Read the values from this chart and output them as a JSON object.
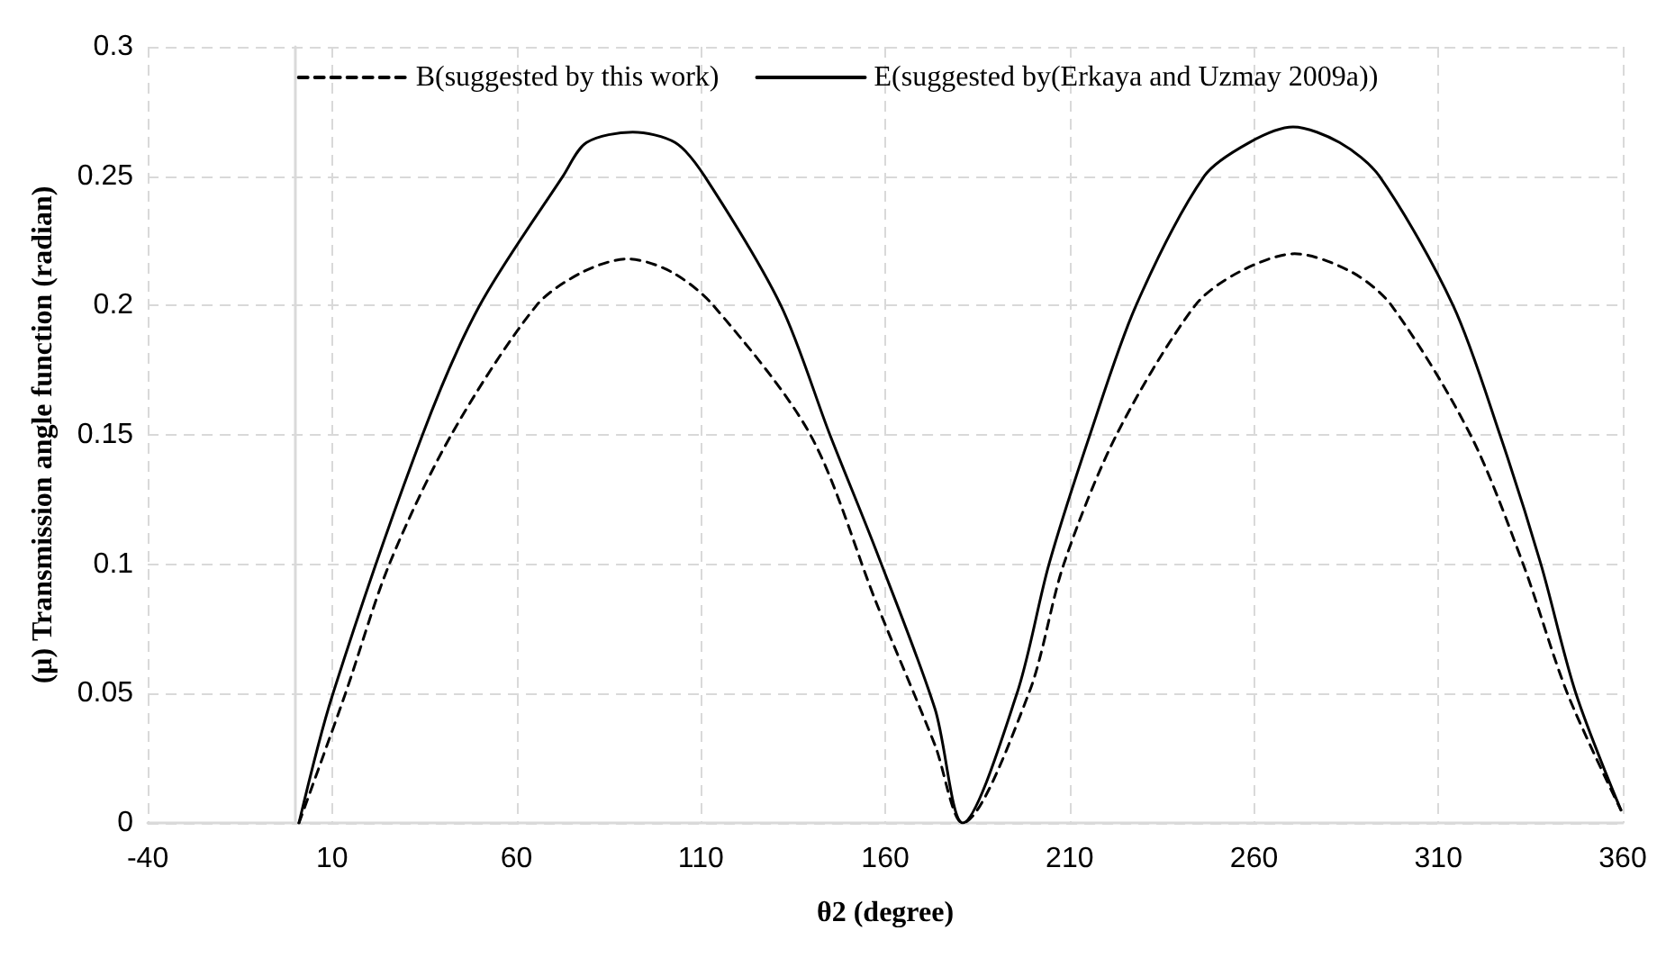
{
  "chart_data": {
    "type": "line",
    "xlabel": "θ2 (degree)",
    "ylabel": "(μ) Transmission angle function (radian)",
    "xlim": [
      -40,
      360
    ],
    "xticks": [
      -40,
      10,
      60,
      110,
      160,
      210,
      260,
      310,
      360
    ],
    "ylim": [
      0,
      0.3
    ],
    "yticks": [
      0,
      0.05,
      0.1,
      0.15,
      0.2,
      0.25,
      0.3
    ],
    "grid": true,
    "legend": "top",
    "marker": "none",
    "series": [
      {
        "name": "B(suggested by this work)",
        "color": "#000000",
        "line_style": "dashed",
        "x": [
          1,
          13.6,
          25.5,
          42.3,
          65.4,
          78,
          90.2,
          102,
          113.4,
          139.7,
          157.6,
          173.5,
          181,
          198.9,
          208.4,
          222.7,
          244,
          256,
          271,
          286.4,
          297.3,
          318.7,
          333,
          345,
          359.5
        ],
        "values": [
          0,
          0.05,
          0.1,
          0.15,
          0.2,
          0.213,
          0.218,
          0.213,
          0.2,
          0.15,
          0.085,
          0.03,
          0,
          0.05,
          0.1,
          0.15,
          0.2,
          0.213,
          0.22,
          0.213,
          0.2,
          0.15,
          0.1,
          0.05,
          0.005
        ]
      },
      {
        "name": "E(suggested by(Erkaya and Uzmay 2009a))",
        "color": "#000000",
        "line_style": "solid",
        "x": [
          1,
          10,
          34.5,
          50,
          72.6,
          79,
          91.5,
          103,
          111,
          131.7,
          145,
          157.6,
          173.5,
          181,
          195.7,
          204.4,
          215.5,
          228,
          246.5,
          258.7,
          270.6,
          283.2,
          294,
          314,
          326.7,
          337.8,
          347.3,
          359.5
        ],
        "values": [
          0,
          0.049,
          0.15,
          0.2,
          0.25,
          0.263,
          0.267,
          0.263,
          0.25,
          0.2,
          0.15,
          0.105,
          0.044,
          0,
          0.05,
          0.1,
          0.15,
          0.2,
          0.25,
          0.263,
          0.269,
          0.263,
          0.25,
          0.2,
          0.15,
          0.1,
          0.05,
          0.005
        ]
      }
    ]
  }
}
